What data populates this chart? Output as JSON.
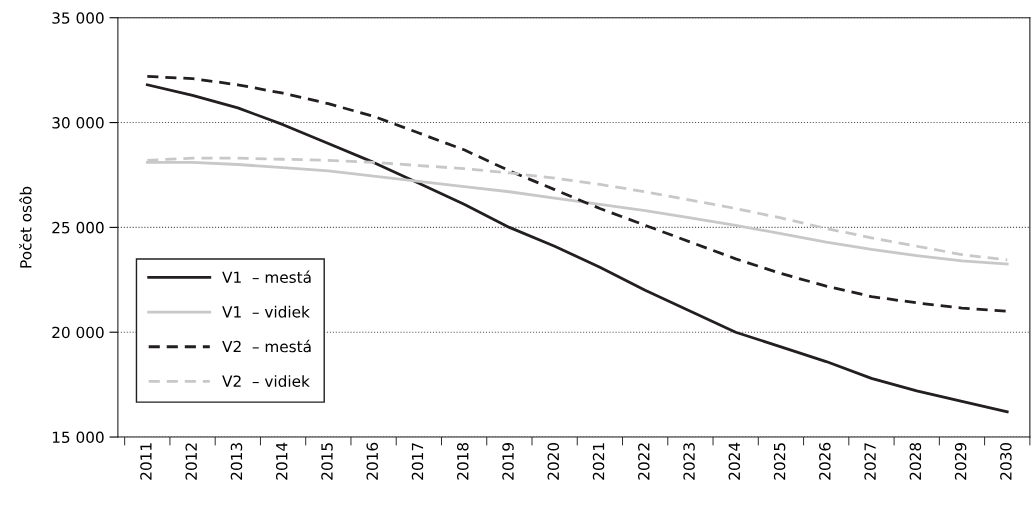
{
  "chart_data": {
    "type": "line",
    "ylabel": "Počet osôb",
    "categories": [
      "2011",
      "2012",
      "2013",
      "2014",
      "2015",
      "2016",
      "2017",
      "2018",
      "2019",
      "2020",
      "2021",
      "2022",
      "2023",
      "2024",
      "2025",
      "2026",
      "2027",
      "2028",
      "2029",
      "2030"
    ],
    "series": [
      {
        "name": "V1  – mestá",
        "color": "#231f20",
        "line_style": "solid",
        "values": [
          31800,
          31300,
          30700,
          29900,
          29000,
          28100,
          27100,
          26100,
          25000,
          24100,
          23100,
          22000,
          21000,
          20000,
          19300,
          18600,
          17800,
          17200,
          16700,
          16200
        ]
      },
      {
        "name": "V1  – vidiek",
        "color": "#c8c8c8",
        "line_style": "solid",
        "values": [
          28100,
          28100,
          28000,
          27850,
          27700,
          27450,
          27200,
          26950,
          26700,
          26400,
          26100,
          25800,
          25450,
          25100,
          24700,
          24300,
          23950,
          23650,
          23400,
          23250
        ]
      },
      {
        "name": "V2  – mestá",
        "color": "#231f20",
        "line_style": "dashed",
        "values": [
          32200,
          32100,
          31800,
          31400,
          30900,
          30300,
          29500,
          28700,
          27700,
          26800,
          25900,
          25100,
          24300,
          23500,
          22800,
          22200,
          21700,
          21400,
          21150,
          21000
        ]
      },
      {
        "name": "V2  – vidiek",
        "color": "#c8c8c8",
        "line_style": "dashed",
        "values": [
          28200,
          28300,
          28300,
          28250,
          28200,
          28100,
          27950,
          27800,
          27600,
          27350,
          27050,
          26700,
          26300,
          25900,
          25450,
          24950,
          24500,
          24100,
          23700,
          23450
        ]
      }
    ],
    "ylim": [
      15000,
      35000
    ],
    "yticks": [
      {
        "value": 15000,
        "label": "15 000"
      },
      {
        "value": 20000,
        "label": "20 000"
      },
      {
        "value": 25000,
        "label": "25 000"
      },
      {
        "value": 30000,
        "label": "30 000"
      },
      {
        "value": 35000,
        "label": "35 000"
      }
    ],
    "grid": "y",
    "legend": "lower left",
    "marker": "none"
  }
}
